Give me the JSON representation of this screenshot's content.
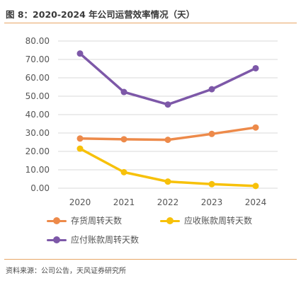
{
  "header": {
    "title": "图 8：2020-2024 年公司运营效率情况（天）"
  },
  "footer": {
    "source": "资料来源：公司公告，天风证券研究所"
  },
  "colors": {
    "accent_rule": "#e8a765",
    "grid": "#d9d9d9"
  },
  "chart_data": {
    "type": "line",
    "categories": [
      "2020",
      "2021",
      "2022",
      "2023",
      "2024"
    ],
    "y_ticks": [
      "0.00",
      "10.00",
      "20.00",
      "30.00",
      "40.00",
      "50.00",
      "60.00",
      "70.00",
      "80.00"
    ],
    "ylim": [
      0,
      80
    ],
    "grid": true,
    "legend_position": "bottom",
    "series": [
      {
        "name": "存货周转天数",
        "color": "#ed8a4a",
        "values": [
          27.0,
          26.6,
          26.3,
          29.5,
          33.0
        ]
      },
      {
        "name": "应收账款周转天数",
        "color": "#f7c10a",
        "values": [
          21.5,
          8.7,
          3.6,
          2.2,
          1.2
        ]
      },
      {
        "name": "应付账款周转天数",
        "color": "#7d58a8",
        "values": [
          73.2,
          52.3,
          45.5,
          53.8,
          65.2
        ]
      }
    ]
  }
}
